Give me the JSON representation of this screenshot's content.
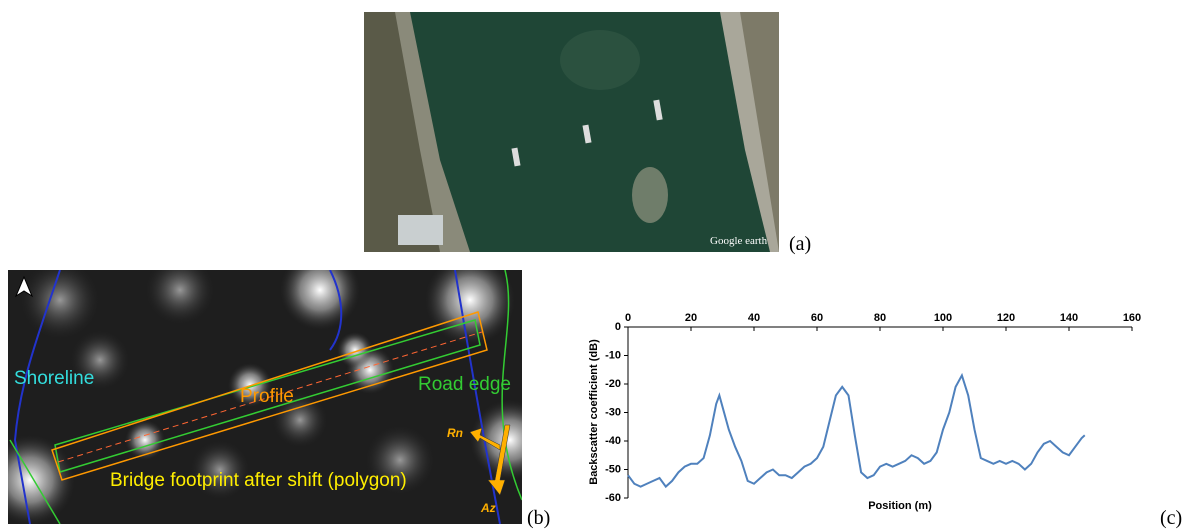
{
  "panel_a": {
    "label": "(a)",
    "watermark": "Google earth"
  },
  "panel_b": {
    "label": "(b)",
    "shoreline": "Shoreline",
    "profile": "Profile",
    "road_edge": "Road edge",
    "range": "Rn",
    "azimuth": "Az",
    "footprint": "Bridge footprint after shift (polygon)"
  },
  "panel_c_label": "(c)",
  "chart_data": {
    "type": "line",
    "xlabel": "Position (m)",
    "ylabel": "Backscatter coefficient (dB)",
    "color": "#4f81bd",
    "x": [
      0,
      2,
      4,
      6,
      8,
      10,
      12,
      14,
      16,
      18,
      20,
      22,
      24,
      26,
      28,
      29,
      30,
      32,
      34,
      36,
      38,
      40,
      42,
      44,
      46,
      48,
      50,
      52,
      54,
      56,
      58,
      60,
      62,
      64,
      66,
      68,
      70,
      72,
      74,
      76,
      78,
      80,
      82,
      84,
      86,
      88,
      90,
      92,
      94,
      96,
      98,
      100,
      102,
      104,
      106,
      108,
      110,
      112,
      114,
      116,
      118,
      120,
      122,
      124,
      126,
      128,
      130,
      132,
      134,
      136,
      138,
      140,
      142,
      144,
      145
    ],
    "values": [
      -52,
      -55,
      -56,
      -55,
      -54,
      -53,
      -56,
      -54,
      -51,
      -49,
      -48,
      -48,
      -46,
      -38,
      -27,
      -24,
      -28,
      -36,
      -42,
      -47,
      -54,
      -55,
      -53,
      -51,
      -50,
      -52,
      -52,
      -53,
      -51,
      -49,
      -48,
      -46,
      -42,
      -33,
      -24,
      -21,
      -24,
      -38,
      -51,
      -53,
      -52,
      -49,
      -48,
      -49,
      -48,
      -47,
      -45,
      -46,
      -48,
      -47,
      -44,
      -36,
      -30,
      -21,
      -17,
      -24,
      -36,
      -46,
      -47,
      -48,
      -47,
      -48,
      -47,
      -48,
      -50,
      -48,
      -44,
      -41,
      -40,
      -42,
      -44,
      -45,
      -42,
      -39,
      -38
    ],
    "xlim": [
      0,
      160
    ],
    "xticks": [
      0,
      20,
      40,
      60,
      80,
      100,
      120,
      140,
      160
    ],
    "ylim": [
      -60,
      0
    ],
    "yticks": [
      0,
      -10,
      -20,
      -30,
      -40,
      -50,
      -60
    ]
  }
}
